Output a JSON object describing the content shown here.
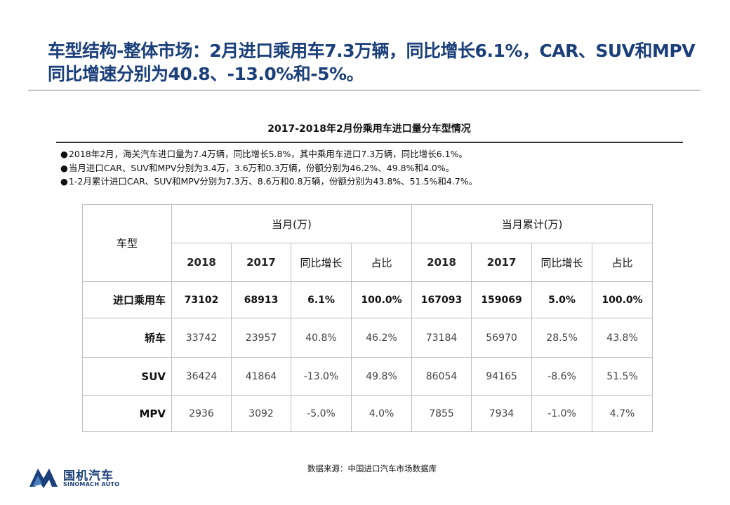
{
  "title": "车型结构-整体市场：2月进口乘用车7.3万辆，同比增长6.1%，CAR、SUV和MPV同比增速分别为40.8、-13.0%和-5%。",
  "subtitle": "2017-2018年2月份乘用车进口量分车型情况",
  "notes": [
    "2018年2月，海关汽车进口量为7.4万辆，同比增长5.8%，其中乘用车进口7.3万辆，同比增长6.1%。",
    "当月进口CAR、SUV和MPV分别为3.4万，3.6万和0.3万辆，份额分别为46.2%、49.8%和4.0%。",
    "1-2月累计进口CAR、SUV和MPV分别为7.3万、8.6万和0.8万辆，份额分别为43.8%、51.5%和4.7%。"
  ],
  "table": {
    "corner": "车型",
    "group_month": "当月(万)",
    "group_cumulative": "当月累计(万)",
    "subheaders": [
      "2018",
      "2017",
      "同比增长",
      "占比",
      "2018",
      "2017",
      "同比增长",
      "占比"
    ],
    "rows": [
      {
        "label": "进口乘用车",
        "values": [
          "73102",
          "68913",
          "6.1%",
          "100.0%",
          "167093",
          "159069",
          "5.0%",
          "100.0%"
        ]
      },
      {
        "label": "轿车",
        "values": [
          "33742",
          "23957",
          "40.8%",
          "46.2%",
          "73184",
          "56970",
          "28.5%",
          "43.8%"
        ]
      },
      {
        "label": "SUV",
        "values": [
          "36424",
          "41864",
          "-13.0%",
          "49.8%",
          "86054",
          "94165",
          "-8.6%",
          "51.5%"
        ]
      },
      {
        "label": "MPV",
        "values": [
          "2936",
          "3092",
          "-5.0%",
          "4.0%",
          "7855",
          "7934",
          "-1.0%",
          "4.7%"
        ]
      }
    ]
  },
  "source": "数据来源：中国进口汽车市场数据库",
  "logo": {
    "cn": "国机汽车",
    "en": "SINOMACH AUTO",
    "icon": "sinomach-logo-icon",
    "color": "#1b3f7a"
  }
}
